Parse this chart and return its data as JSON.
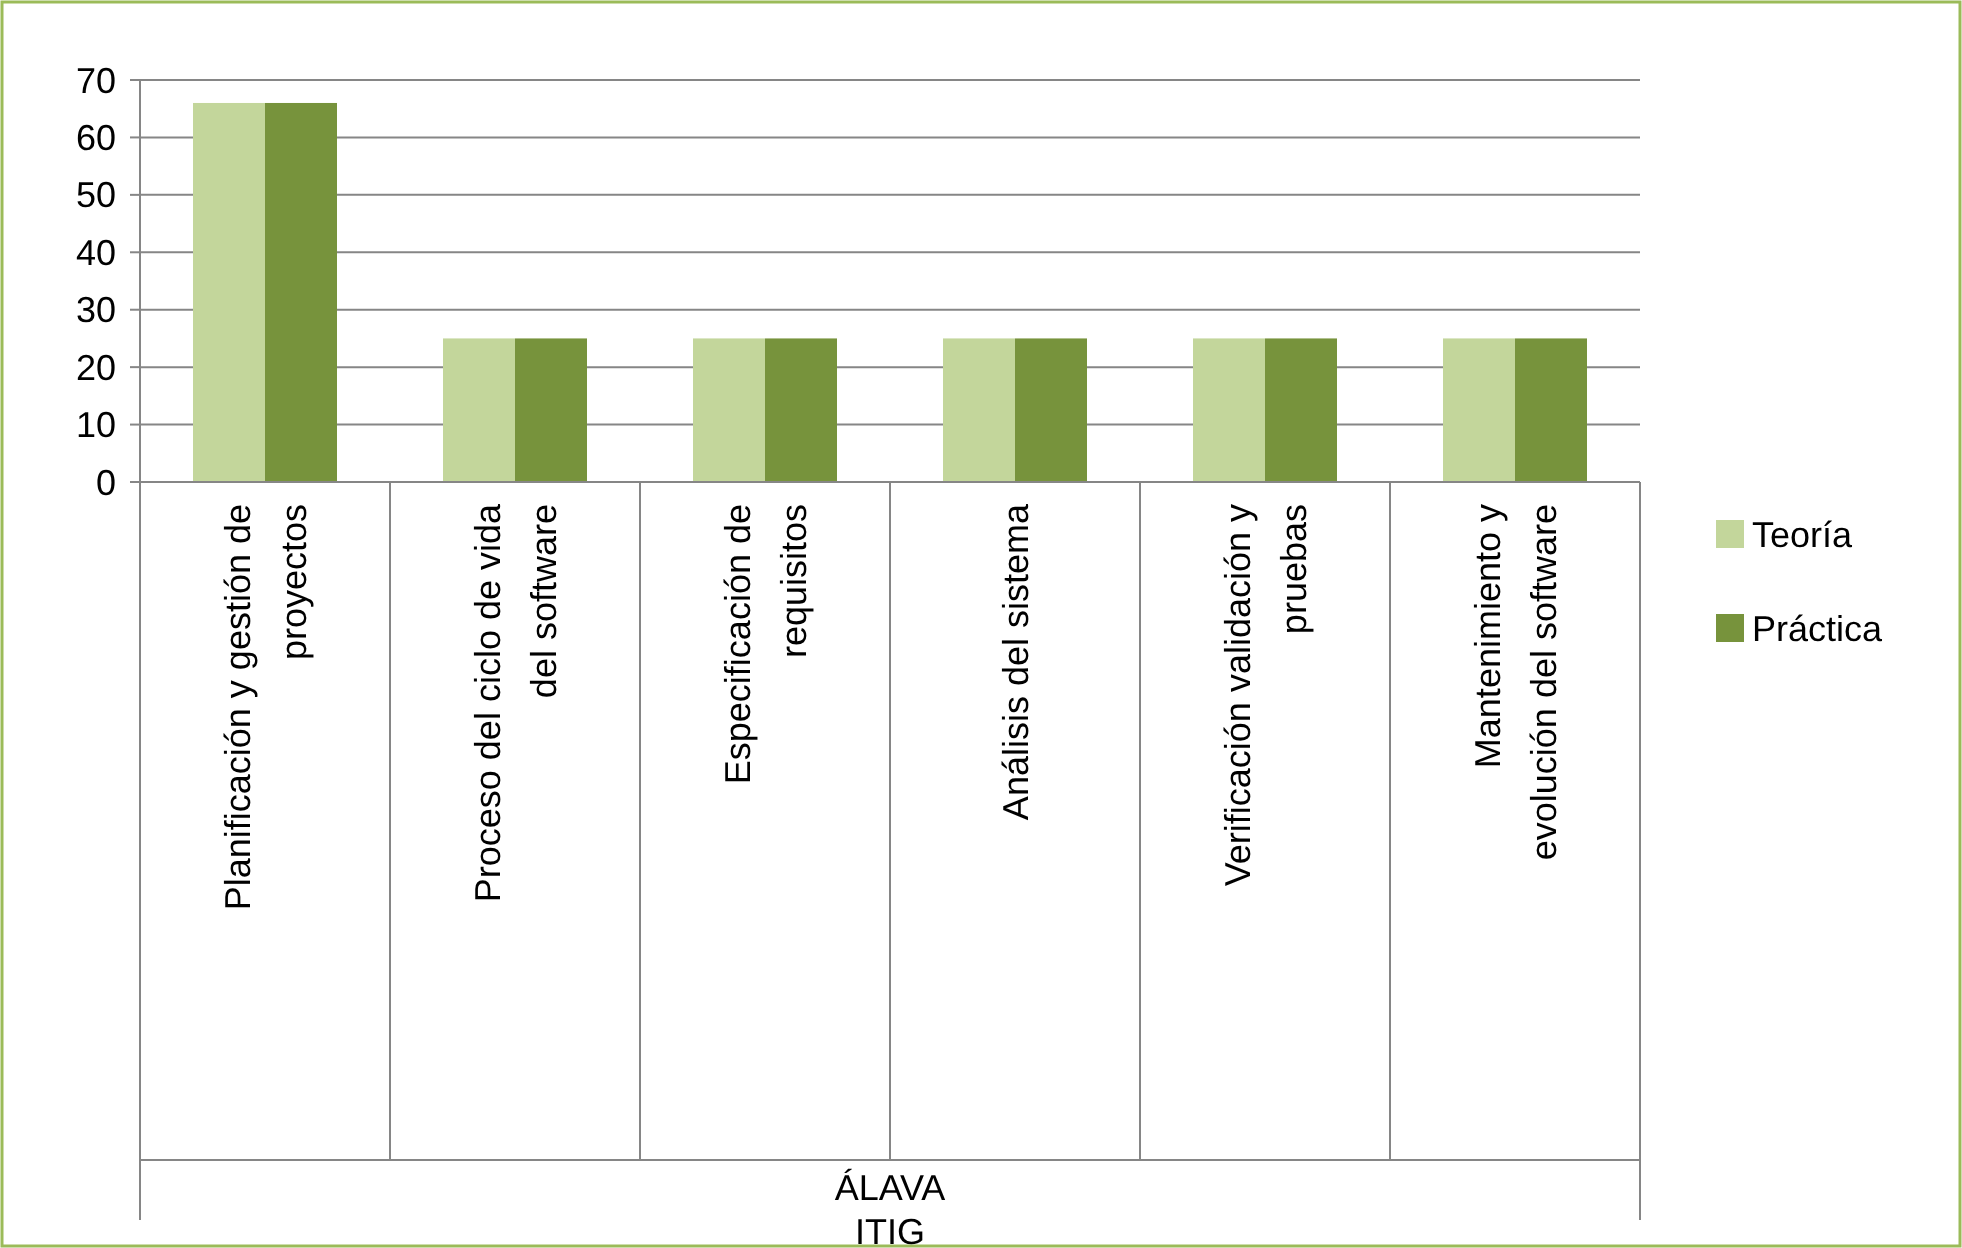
{
  "chart_data": {
    "type": "bar",
    "categories": [
      "Planificación y gestión de\nproyectos",
      "Proceso del ciclo de vida\ndel software",
      "Especificación de\nrequisitos",
      "Análisis del sistema",
      "Verificación validación y\npruebas",
      "Mantenimiento y\nevolución del software"
    ],
    "series": [
      {
        "name": "Teoría",
        "color": "#c3d69b",
        "values": [
          66,
          25,
          25,
          25,
          25,
          25
        ]
      },
      {
        "name": "Práctica",
        "color": "#77933c",
        "values": [
          66,
          25,
          25,
          25,
          25,
          25
        ]
      }
    ],
    "ylim": [
      0,
      70
    ],
    "yticks": [
      0,
      10,
      20,
      30,
      40,
      50,
      60,
      70
    ],
    "grid": "y",
    "legend": "right",
    "annotations": [
      "ÁLAVA",
      "ITIG"
    ]
  }
}
